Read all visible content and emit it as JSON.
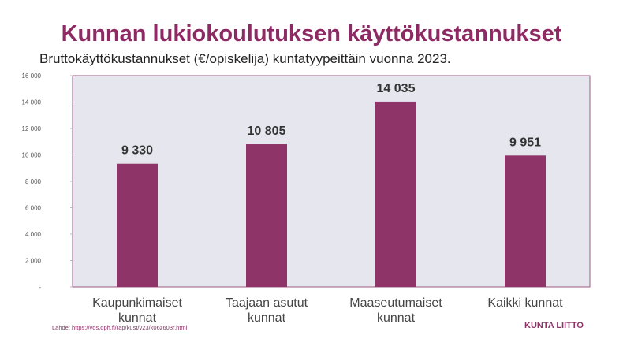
{
  "chart_data": {
    "type": "bar",
    "title": "Kunnan lukiokoulutuksen käyttökustannukset",
    "subtitle": "Bruttokäyttökustannukset (€/opiskelija) kuntatyypeittäin vuonna 2023.",
    "categories": [
      "Kaupunkimaiset kunnat",
      "Taajaan asutut kunnat",
      "Maaseutumaiset kunnat",
      "Kaikki kunnat"
    ],
    "values": [
      9330,
      10805,
      14035,
      9951
    ],
    "value_labels": [
      "9 330",
      "10 805",
      "14 035",
      "9 951"
    ],
    "color": "#8e3469",
    "ylim": [
      0,
      16000
    ],
    "yticks": [
      {
        "value": 0,
        "label": "-"
      },
      {
        "value": 2000,
        "label": "2 000"
      },
      {
        "value": 4000,
        "label": "4 000"
      },
      {
        "value": 6000,
        "label": "6 000"
      },
      {
        "value": 8000,
        "label": "8 000"
      },
      {
        "value": 10000,
        "label": "10 000"
      },
      {
        "value": 12000,
        "label": "12 000"
      },
      {
        "value": 14000,
        "label": "14 000"
      },
      {
        "value": 16000,
        "label": "16 000"
      }
    ],
    "source": "Lähde: https://vos.oph.fi/rap/kust/v23/k06z603r.html"
  },
  "logo": "KUNTA LIITTO"
}
